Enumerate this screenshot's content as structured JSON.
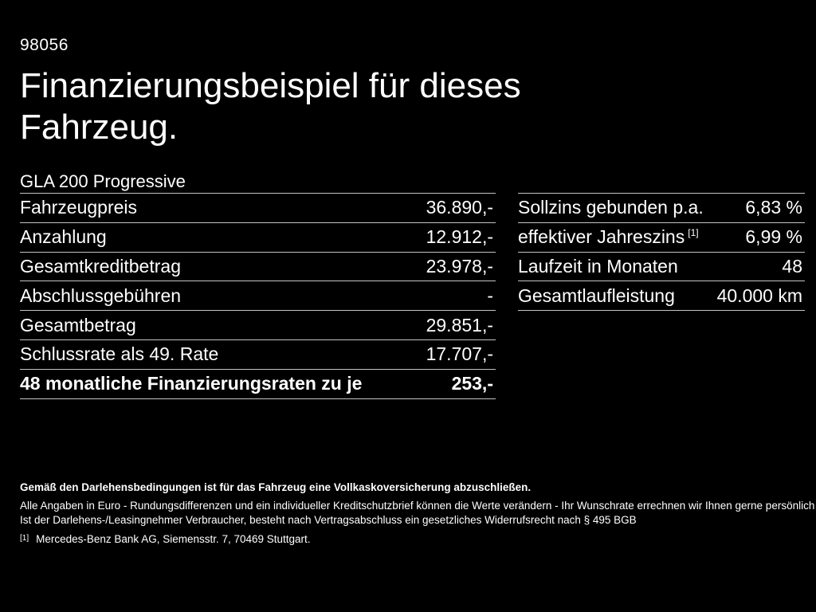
{
  "page": {
    "background": "#000000",
    "text_color": "#ffffff",
    "divider_color": "#c4c4c4"
  },
  "header": {
    "reference_number": "98056",
    "title_lines": [
      "Finanzierungsbeispiel für dieses",
      "Fahrzeug."
    ],
    "model": "GLA 200 Progressive"
  },
  "finance_table": {
    "rows": [
      {
        "label": "Fahrzeugpreis",
        "value": "36.890,-"
      },
      {
        "label": "Anzahlung",
        "value": "12.912,-"
      },
      {
        "label": "Gesamtkreditbetrag",
        "value": "23.978,-"
      },
      {
        "label": "Abschlussgebühren",
        "value": "-"
      },
      {
        "label": "Gesamtbetrag",
        "value": "29.851,-"
      },
      {
        "label": "Schlussrate als 49. Rate",
        "value": "17.707,-"
      },
      {
        "label": "48 monatliche Finanzierungsraten zu je",
        "value": "253,-",
        "bold": true
      }
    ]
  },
  "conditions_table": {
    "rows": [
      {
        "label": "Sollzins gebunden p.a.",
        "value": "6,83 %"
      },
      {
        "label": "effektiver Jahreszins",
        "sup": "[1]",
        "value": "6,99 %"
      },
      {
        "label": "Laufzeit in Monaten",
        "value": "48"
      },
      {
        "label": "Gesamtlaufleistung",
        "value": "40.000 km"
      }
    ]
  },
  "footnotes": {
    "insurance_note": "Gemäß den Darlehensbedingungen ist für das Fahrzeug eine Vollkaskoversicherung abzuschließen.",
    "disclaimer_1": "Alle Angaben in Euro - Rundungsdifferenzen und ein individueller Kreditschutzbrief können die Werte verändern - Ihr Wunschrate errechnen wir Ihnen gerne persönlich",
    "disclaimer_2": "Ist der Darlehens-/Leasingnehmer Verbraucher, besteht nach Vertragsabschluss ein gesetzliches Widerrufsrecht nach § 495 BGB",
    "footnote_1_marker": "[1]",
    "footnote_1_text": "Mercedes-Benz Bank AG, Siemensstr. 7, 70469 Stuttgart."
  }
}
